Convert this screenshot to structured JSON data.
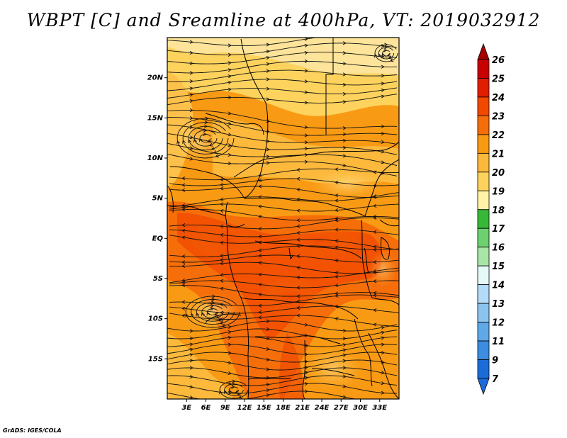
{
  "title": "WBPT [C] and Sreamline at 400hPa, VT: 2019032912",
  "credit": "GrADS: IGES/COLA",
  "map": {
    "lon_range": [
      0,
      36
    ],
    "lat_range": [
      -20,
      25
    ],
    "lat_ticks": [
      {
        "value": 20,
        "label": "20N"
      },
      {
        "value": 15,
        "label": "15N"
      },
      {
        "value": 10,
        "label": "10N"
      },
      {
        "value": 5,
        "label": "5N"
      },
      {
        "value": 0,
        "label": "EQ"
      },
      {
        "value": -5,
        "label": "5S"
      },
      {
        "value": -10,
        "label": "10S"
      },
      {
        "value": -15,
        "label": "15S"
      }
    ],
    "lon_ticks": [
      {
        "value": 3,
        "label": "3E"
      },
      {
        "value": 6,
        "label": "6E"
      },
      {
        "value": 9,
        "label": "9E"
      },
      {
        "value": 12,
        "label": "12E"
      },
      {
        "value": 15,
        "label": "15E"
      },
      {
        "value": 18,
        "label": "18E"
      },
      {
        "value": 21,
        "label": "21E"
      },
      {
        "value": 24,
        "label": "24E"
      },
      {
        "value": 27,
        "label": "27E"
      },
      {
        "value": 30,
        "label": "30E"
      },
      {
        "value": 33,
        "label": "33E"
      }
    ]
  },
  "colorbar": {
    "levels": [
      {
        "label": "26",
        "color": "#a50000"
      },
      {
        "label": "25",
        "color": "#c80000"
      },
      {
        "label": "24",
        "color": "#e01e00"
      },
      {
        "label": "23",
        "color": "#f04a00"
      },
      {
        "label": "22",
        "color": "#f56e0a"
      },
      {
        "label": "21",
        "color": "#f99a14"
      },
      {
        "label": "20",
        "color": "#fcb93c"
      },
      {
        "label": "19",
        "color": "#fdd35e"
      },
      {
        "label": "18",
        "color": "#fff3a8"
      },
      {
        "label": "17",
        "color": "#38b838"
      },
      {
        "label": "16",
        "color": "#6ed06e"
      },
      {
        "label": "15",
        "color": "#a8e6a8"
      },
      {
        "label": "14",
        "color": "#e4f8f8"
      },
      {
        "label": "13",
        "color": "#b4dcf8"
      },
      {
        "label": "12",
        "color": "#8cc4f0"
      },
      {
        "label": "11",
        "color": "#60a8e8"
      },
      {
        "label": "9",
        "color": "#3c8ce0"
      },
      {
        "label": "7",
        "color": "#1c6cd8"
      }
    ],
    "bottom_color": "#1c6cd8"
  }
}
